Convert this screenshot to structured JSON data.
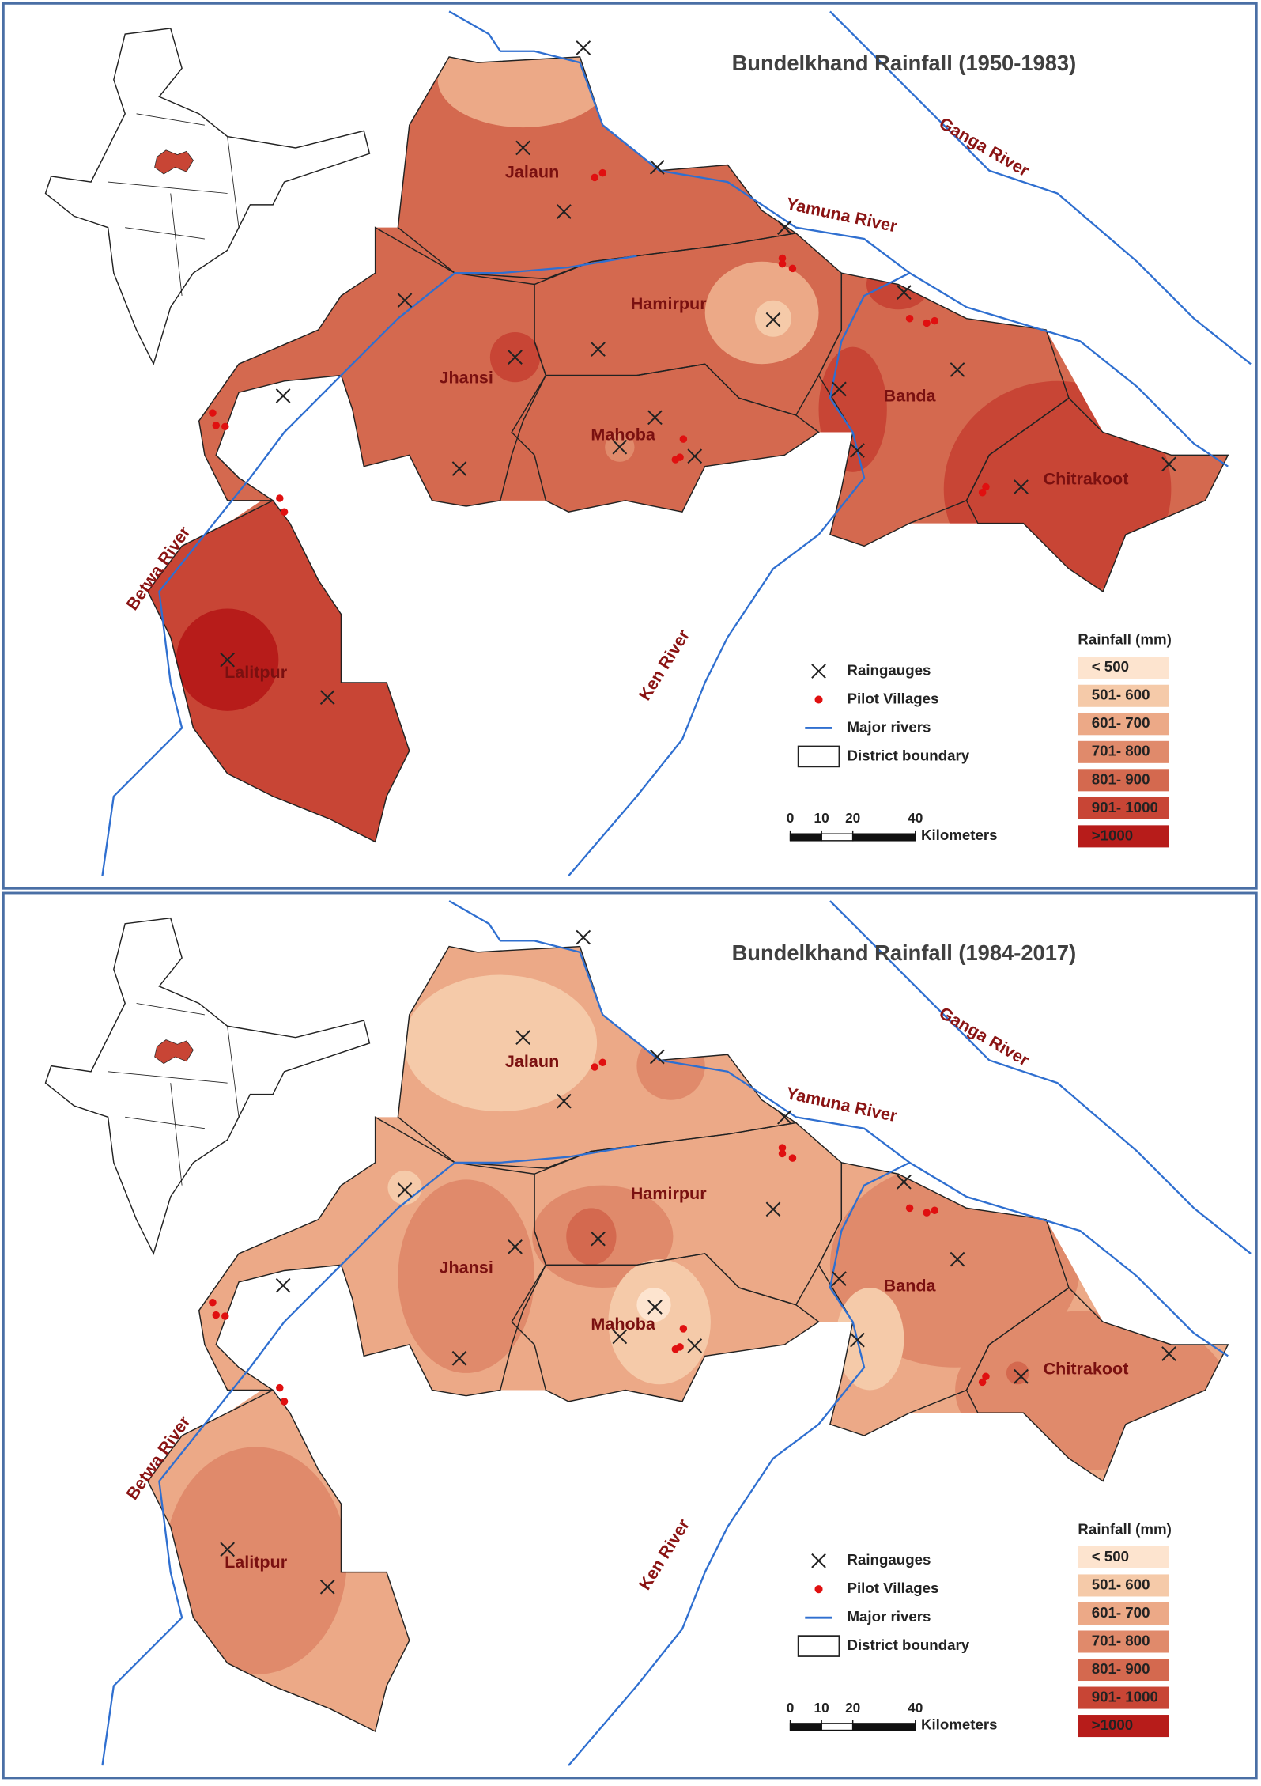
{
  "panels": [
    {
      "title": "Bundelkhand Rainfall (1950-1983)",
      "districts": [
        "Jalaun",
        "Hamirpur",
        "Jhansi",
        "Mahoba",
        "Banda",
        "Chitrakoot",
        "Lalitpur"
      ],
      "rivers": [
        "Ganga River",
        "Yamuna River",
        "Betwa River",
        "Ken River"
      ],
      "legend": [
        "Raingauges",
        "Pilot Villages",
        "Major rivers",
        "District boundary"
      ],
      "rainfall_title": "Rainfall (mm)",
      "rainfall_classes": [
        {
          "label": "< 500",
          "color": "#fde4cf"
        },
        {
          "label": "501- 600",
          "color": "#f5caa9"
        },
        {
          "label": "601- 700",
          "color": "#eca987"
        },
        {
          "label": "701- 800",
          "color": "#e08a6b"
        },
        {
          "label": "801- 900",
          "color": "#d4694f"
        },
        {
          "label": "901- 1000",
          "color": "#c84535"
        },
        {
          "label": ">1000",
          "color": "#b71c1a"
        }
      ],
      "scale": {
        "ticks": [
          0,
          10,
          20,
          40
        ],
        "unit": "Kilometers"
      }
    },
    {
      "title": "Bundelkhand Rainfall (1984-2017)",
      "districts": [
        "Jalaun",
        "Hamirpur",
        "Jhansi",
        "Mahoba",
        "Banda",
        "Chitrakoot",
        "Lalitpur"
      ],
      "rivers": [
        "Ganga River",
        "Yamuna River",
        "Betwa River",
        "Ken River"
      ],
      "legend": [
        "Raingauges",
        "Pilot Villages",
        "Major rivers",
        "District boundary"
      ],
      "rainfall_title": "Rainfall (mm)",
      "rainfall_classes": [
        {
          "label": "< 500",
          "color": "#fde4cf"
        },
        {
          "label": "501- 600",
          "color": "#f5caa9"
        },
        {
          "label": "601- 700",
          "color": "#eca987"
        },
        {
          "label": "701- 800",
          "color": "#e08a6b"
        },
        {
          "label": "801- 900",
          "color": "#d4694f"
        },
        {
          "label": "901- 1000",
          "color": "#c84535"
        },
        {
          "label": ">1000",
          "color": "#b71c1a"
        }
      ],
      "scale": {
        "ticks": [
          0,
          10,
          20,
          40
        ],
        "unit": "Kilometers"
      }
    }
  ]
}
